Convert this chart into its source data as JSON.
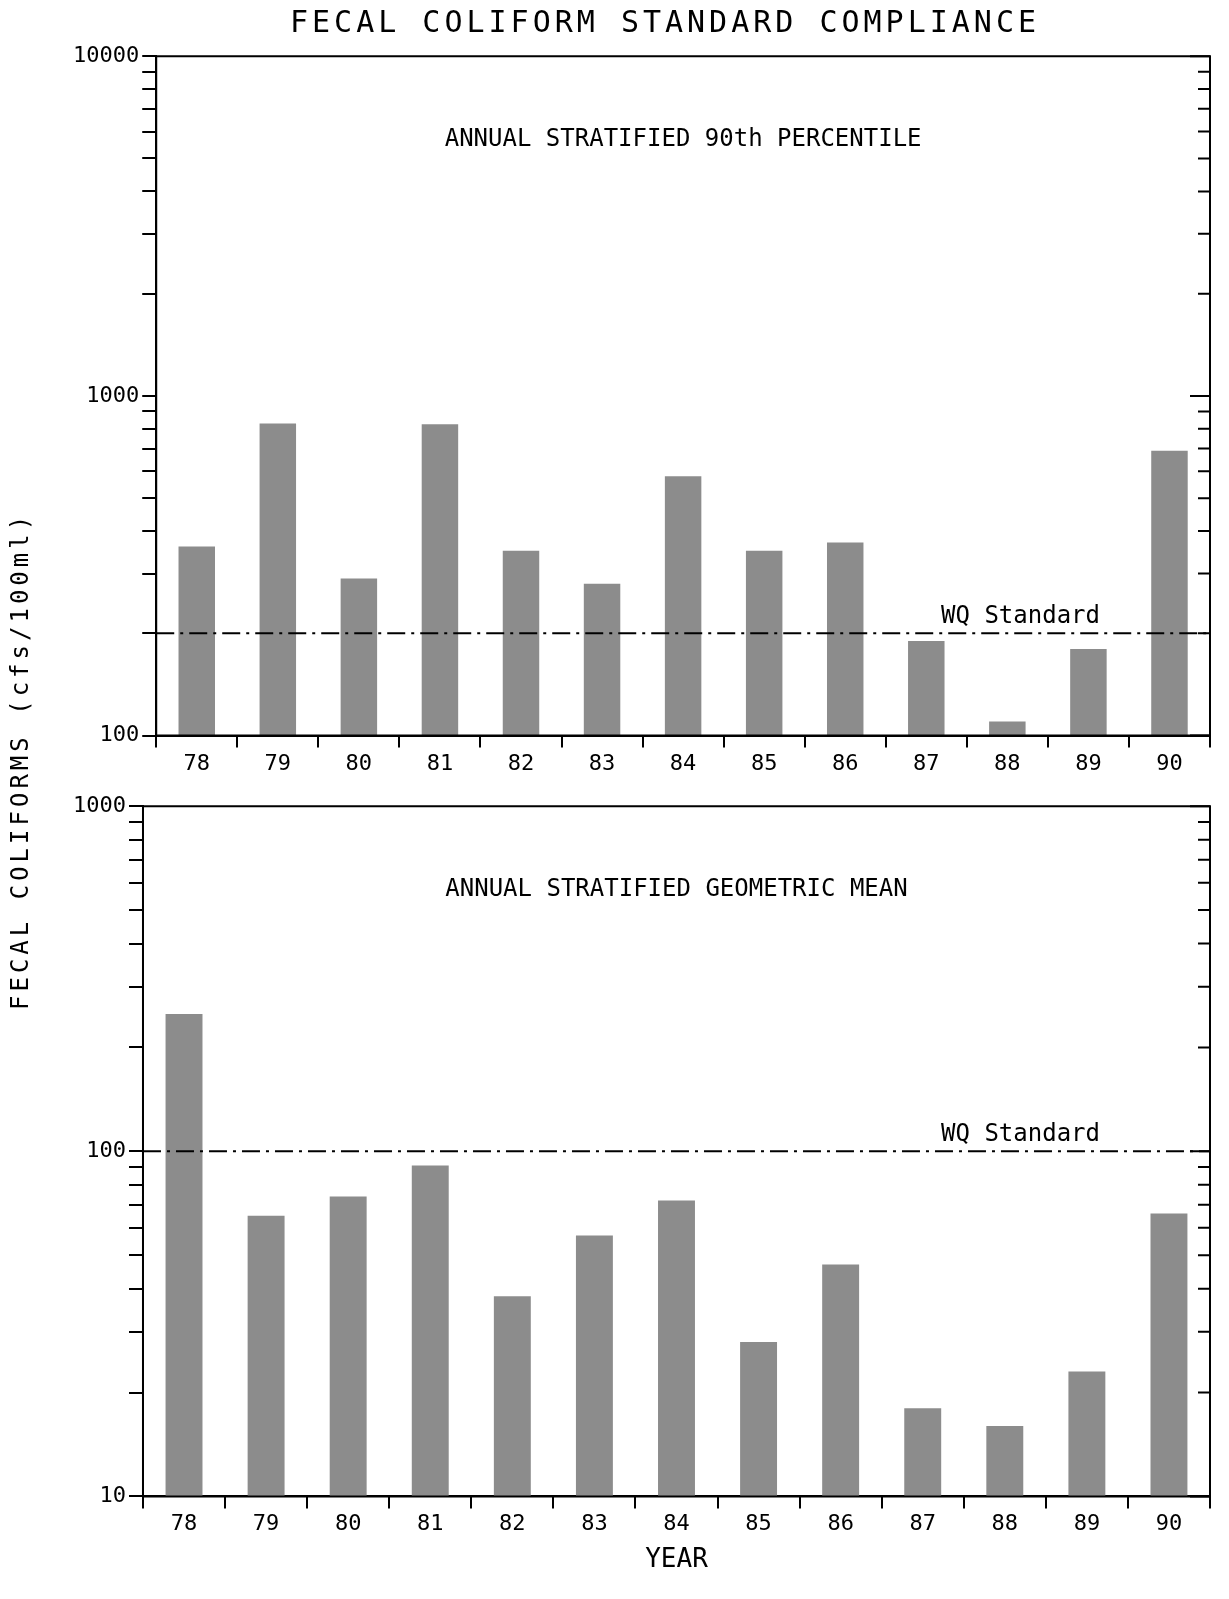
{
  "chart_data": [
    {
      "type": "bar",
      "title": "FECAL COLIFORM STANDARD COMPLIANCE",
      "ylabel": "FECAL COLIFORMS (cfs/100ml)",
      "categories": [
        "78",
        "79",
        "80",
        "81",
        "82",
        "83",
        "84",
        "85",
        "86",
        "87",
        "88",
        "89",
        "90"
      ],
      "values": [
        360,
        830,
        290,
        825,
        350,
        280,
        580,
        350,
        370,
        190,
        110,
        180,
        690
      ],
      "color": "#8c8c8c",
      "log": true,
      "grid": false,
      "ylim": [
        100,
        10000
      ],
      "yticks": [
        100,
        {
          "value": 200,
          "label": null
        },
        {
          "value": 300,
          "label": null
        },
        {
          "value": 400,
          "label": null
        },
        {
          "value": 500,
          "label": null
        },
        {
          "value": 600,
          "label": null
        },
        {
          "value": 700,
          "label": null
        },
        {
          "value": 800,
          "label": null
        },
        {
          "value": 900,
          "label": null
        },
        1000,
        {
          "value": 2000,
          "label": null
        },
        {
          "value": 3000,
          "label": null
        },
        {
          "value": 4000,
          "label": null
        },
        {
          "value": 5000,
          "label": null
        },
        {
          "value": 6000,
          "label": null
        },
        {
          "value": 7000,
          "label": null
        },
        {
          "value": 8000,
          "label": null
        },
        {
          "value": 9000,
          "label": null
        },
        10000
      ],
      "ref_lines": [
        {
          "axis": "y",
          "value": 200,
          "label": "WQ Standard",
          "line_style": "dashed",
          "color": "#000000"
        }
      ],
      "annotations": [
        "ANNUAL STRATIFIED 90th PERCENTILE"
      ]
    },
    {
      "type": "bar",
      "xlabel": "YEAR",
      "categories": [
        "78",
        "79",
        "80",
        "81",
        "82",
        "83",
        "84",
        "85",
        "86",
        "87",
        "88",
        "89",
        "90"
      ],
      "values": [
        250,
        65,
        74,
        91,
        38,
        57,
        72,
        28,
        47,
        18,
        16,
        23,
        66
      ],
      "color": "#8c8c8c",
      "log": true,
      "grid": false,
      "ylim": [
        10,
        1000
      ],
      "yticks": [
        10,
        {
          "value": 20,
          "label": null
        },
        {
          "value": 30,
          "label": null
        },
        {
          "value": 40,
          "label": null
        },
        {
          "value": 50,
          "label": null
        },
        {
          "value": 60,
          "label": null
        },
        {
          "value": 70,
          "label": null
        },
        {
          "value": 80,
          "label": null
        },
        {
          "value": 90,
          "label": null
        },
        100,
        {
          "value": 200,
          "label": null
        },
        {
          "value": 300,
          "label": null
        },
        {
          "value": 400,
          "label": null
        },
        {
          "value": 500,
          "label": null
        },
        {
          "value": 600,
          "label": null
        },
        {
          "value": 700,
          "label": null
        },
        {
          "value": 800,
          "label": null
        },
        {
          "value": 900,
          "label": null
        },
        1000
      ],
      "ref_lines": [
        {
          "axis": "y",
          "value": 100,
          "label": "WQ Standard",
          "line_style": "dashed",
          "color": "#000000"
        }
      ],
      "annotations": [
        "ANNUAL STRATIFIED GEOMETRIC MEAN"
      ]
    }
  ]
}
